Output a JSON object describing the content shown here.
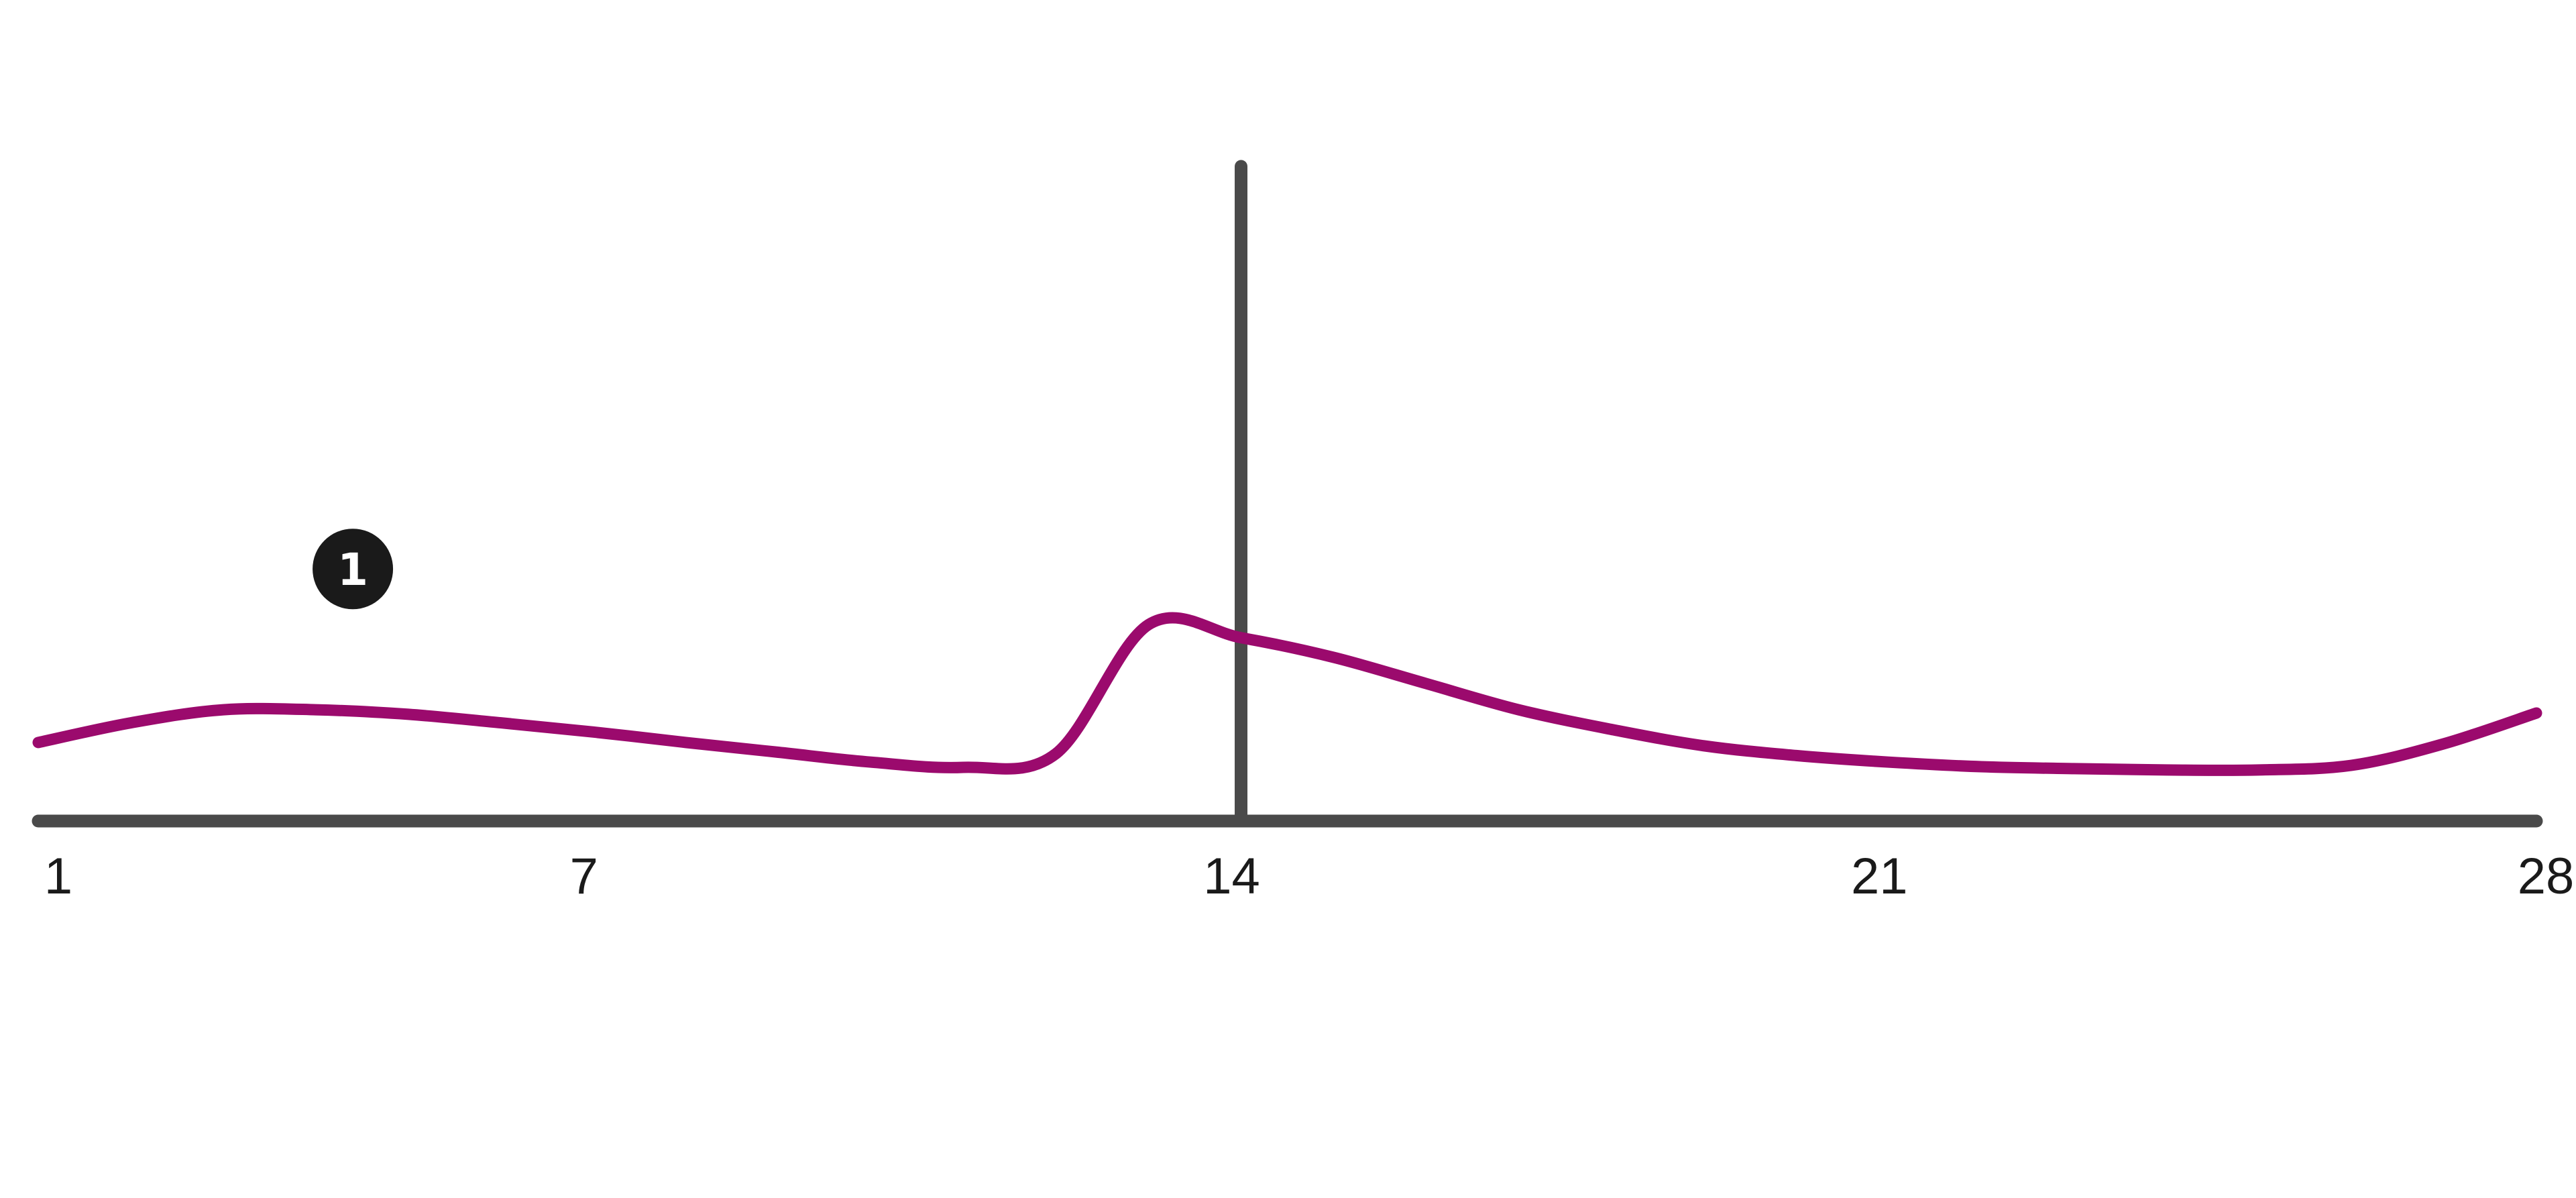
{
  "chart_data": {
    "type": "line",
    "title": "",
    "xlabel": "",
    "ylabel": "",
    "xlim": [
      1,
      28
    ],
    "ylim": [
      0,
      1
    ],
    "x_ticks": [
      "1",
      "7",
      "14",
      "21",
      "28"
    ],
    "grid": false,
    "legend": "none",
    "series": [
      {
        "color": "#9b0a6d",
        "x": [
          1,
          2,
          3,
          4,
          5,
          6,
          7,
          8,
          9,
          10,
          11,
          12,
          13,
          14,
          15,
          16,
          17,
          18,
          19,
          20,
          21,
          22,
          23,
          24,
          25,
          26,
          27,
          28
        ],
        "y": [
          0.12,
          0.15,
          0.17,
          0.17,
          0.163,
          0.15,
          0.136,
          0.12,
          0.105,
          0.09,
          0.082,
          0.103,
          0.3,
          0.28,
          0.25,
          0.21,
          0.17,
          0.14,
          0.115,
          0.1,
          0.09,
          0.083,
          0.08,
          0.078,
          0.078,
          0.085,
          0.118,
          0.165
        ]
      }
    ],
    "reference_line": {
      "x": 14,
      "color": "#4a4a4a"
    },
    "annotations": [
      {
        "label": "1",
        "x": 4.4,
        "y": 0.385
      }
    ],
    "colors": {
      "line": "#9b0a6d",
      "axis": "#4a4a4a",
      "marker_bg": "#1a1a1a",
      "marker_text": "#ffffff"
    }
  }
}
